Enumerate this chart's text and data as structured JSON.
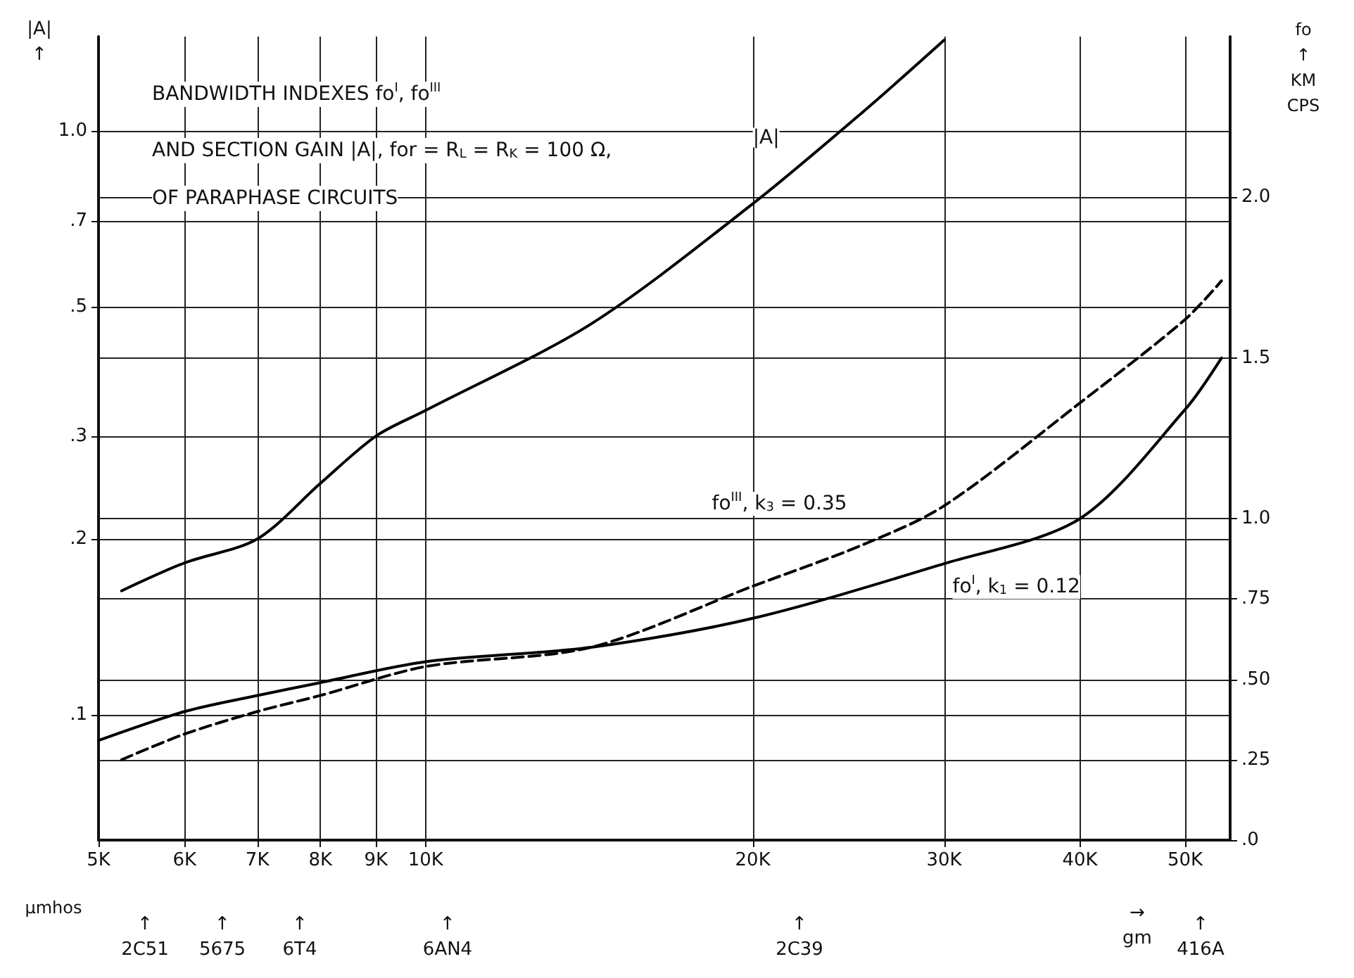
{
  "chart_data": {
    "type": "line",
    "title": "BANDWIDTH INDEXES fo$^{I}$, fo$^{III}$",
    "subtitle": "AND SECTION GAIN |A|, for = R$_{L}$ = R$_{K}$ = 100 Ω,\nOF PARAPHASE CIRCUITS",
    "ylabel": "|A|\n↑",
    "y2label": "fo\n↑\nKM\nCPS",
    "xlabel": "→\ngm",
    "xlim": [
      5000,
      55000
    ],
    "xticks": [
      {
        "value": 5000,
        "label": "5K"
      },
      {
        "value": 6000,
        "label": "6K"
      },
      {
        "value": 7000,
        "label": "7K"
      },
      {
        "value": 8000,
        "label": "8K"
      },
      {
        "value": 9000,
        "label": "9K"
      },
      {
        "value": 10000,
        "label": "10K"
      },
      {
        "value": 20000,
        "label": "20K"
      },
      {
        "value": 30000,
        "label": "30K"
      },
      {
        "value": 40000,
        "label": "40K"
      },
      {
        "value": 50000,
        "label": "50K"
      }
    ],
    "ylim": [
      0.061,
      1.45
    ],
    "yticks": [
      {
        "value": 0.1,
        "label": ".1"
      },
      {
        "value": 0.2,
        "label": ".2"
      },
      {
        "value": 0.3,
        "label": ".3"
      },
      {
        "value": 0.5,
        "label": ".5"
      },
      {
        "value": 0.7,
        "label": ".7"
      },
      {
        "value": 1,
        "label": "1.0"
      }
    ],
    "y2lim": [
      0,
      2.5
    ],
    "y2ticks": [
      {
        "value": 0,
        "label": ".0"
      },
      {
        "value": 0.25,
        "label": ".25"
      },
      {
        "value": 0.5,
        "label": ".50"
      },
      {
        "value": 0.75,
        "label": ".75"
      },
      {
        "value": 1,
        "label": "1.0"
      },
      {
        "value": 1.5,
        "label": "1.5"
      },
      {
        "value": 2,
        "label": "2.0"
      }
    ],
    "log": "xy",
    "grid": true,
    "legend": false,
    "marker": "none",
    "series": [
      {
        "name": "|A|",
        "color": "#000000",
        "line_style": "solid",
        "x": [
          5250,
          6000,
          7000,
          8000,
          9000,
          10000,
          14200,
          20000,
          25300,
          30000
        ],
        "values": [
          0.163,
          0.182,
          0.2,
          0.249,
          0.3,
          0.332,
          0.467,
          0.75,
          1.08,
          1.43
        ]
      },
      {
        "name": "fo$^{III}$, k$_{3}$ = 0.35",
        "color": "#000000",
        "line_style": "dashed",
        "axis": "y2",
        "x": [
          5250,
          6000,
          7000,
          8000,
          10000,
          14200,
          20000,
          25300,
          30000,
          40000,
          50000,
          54000
        ],
        "values": [
          0.25,
          0.33,
          0.4,
          0.45,
          0.54,
          0.6,
          0.79,
          0.92,
          1.04,
          1.36,
          1.62,
          1.74
        ]
      },
      {
        "name": "fo$^{I}$, k$_{1}$ = 0.12",
        "color": "#000000",
        "line_style": "solid",
        "axis": "y2",
        "x": [
          5000,
          6000,
          7000,
          8000,
          10000,
          14200,
          20000,
          30000,
          40000,
          50000,
          54000
        ],
        "values": [
          0.31,
          0.4,
          0.45,
          0.49,
          0.555,
          0.6,
          0.69,
          0.86,
          1.0,
          1.34,
          1.5
        ]
      }
    ],
    "annotations": [
      "μmhos",
      "↑\n2C51",
      "↑\n5675",
      "↑\n6T4",
      "↑\n6AN4",
      "↑\n2C39",
      "↑\n416A"
    ]
  }
}
